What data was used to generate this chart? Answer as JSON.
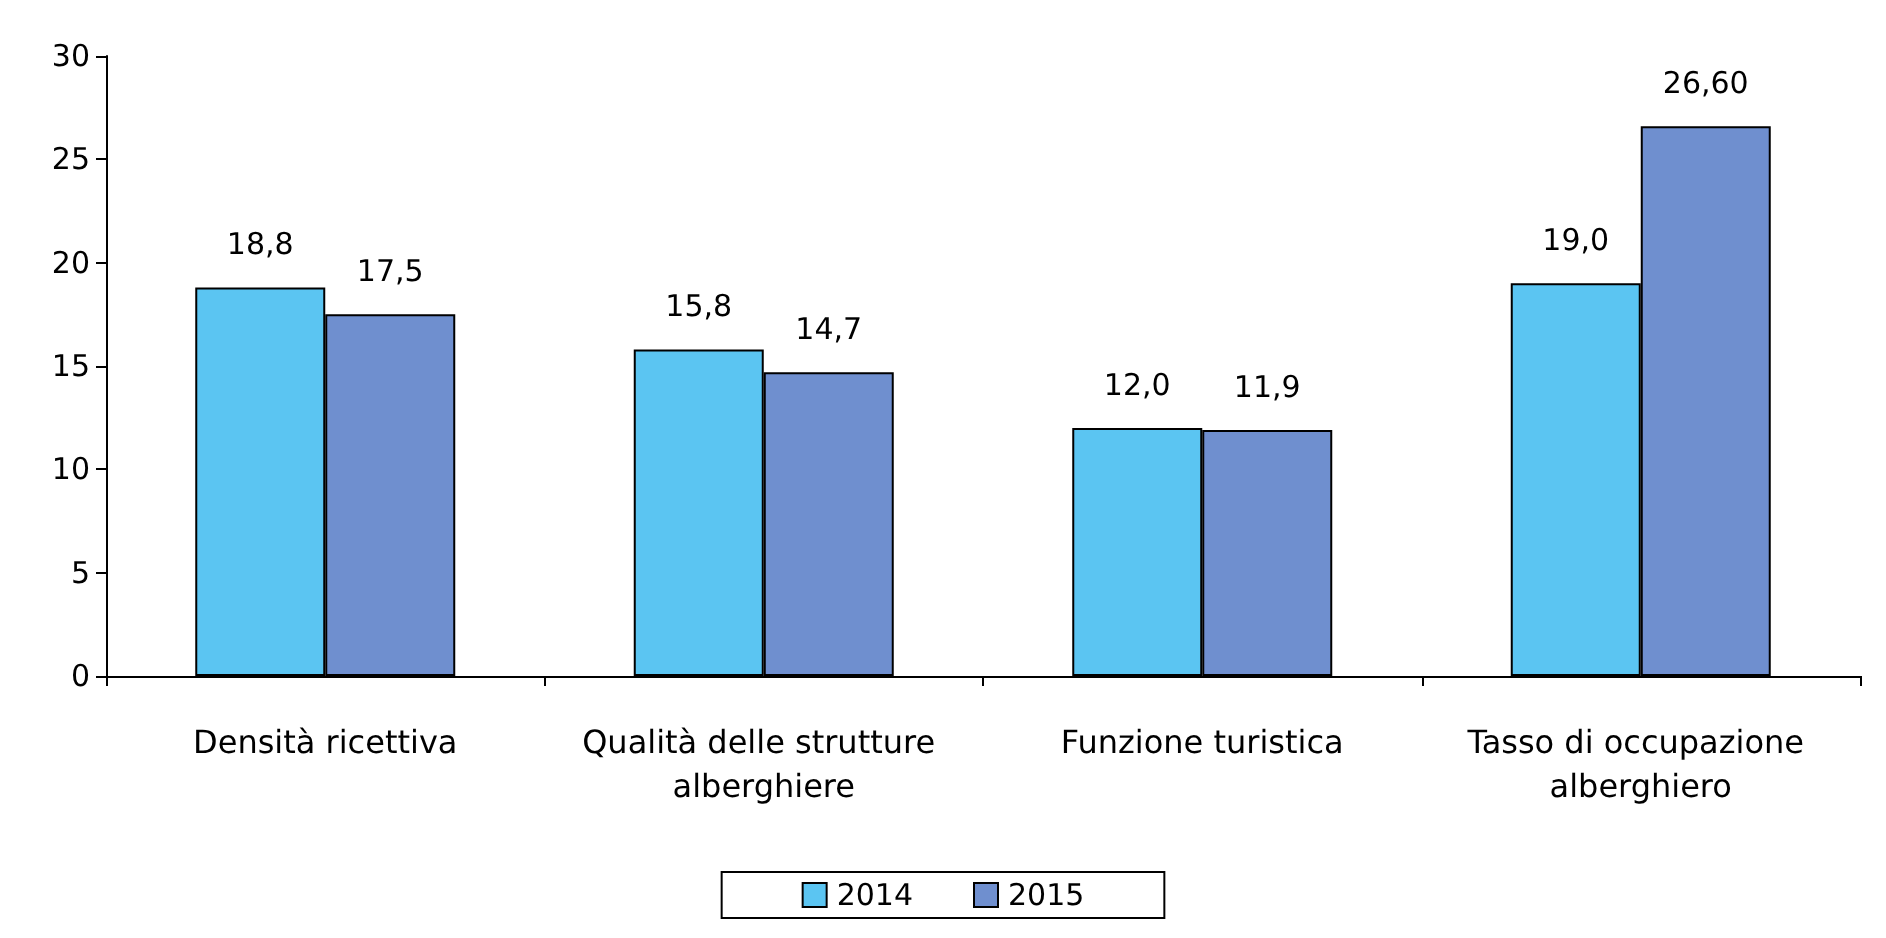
{
  "chart_data": {
    "type": "bar",
    "categories": [
      "Densità ricettiva",
      "Qualità delle strutture alberghiere",
      "Funzione turistica",
      "Tasso di occupazione alberghiero"
    ],
    "series": [
      {
        "name": "2014",
        "color": "#5bc5f2",
        "values": [
          18.8,
          15.8,
          12.0,
          19.0
        ],
        "value_labels": [
          "18,8",
          "15,8",
          "12,0",
          "19,0"
        ]
      },
      {
        "name": "2015",
        "color": "#6f8fcf",
        "values": [
          17.5,
          14.7,
          11.9,
          26.6
        ],
        "value_labels": [
          "17,5",
          "14,7",
          "11,9",
          "26,60"
        ]
      }
    ],
    "ylim": [
      0,
      30
    ],
    "yticks": [
      0,
      5,
      10,
      15,
      20,
      25,
      30
    ],
    "grid": false,
    "legend": "bottom"
  }
}
